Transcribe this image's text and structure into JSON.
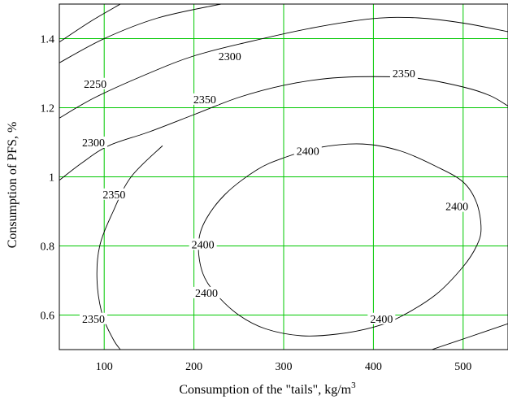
{
  "chart_data": {
    "type": "contour",
    "title": "",
    "xlabel": "Consumption of the \"tails\", kg/m",
    "xlabel_superscript": "3",
    "ylabel": "Consumption of PFS, %",
    "xlim": [
      50,
      550
    ],
    "ylim": [
      0.5,
      1.5
    ],
    "x_ticks": [
      "100",
      "200",
      "300",
      "400",
      "500"
    ],
    "y_ticks": [
      "0.6",
      "0.8",
      "1",
      "1.2",
      "1.4"
    ],
    "x_tick_values": [
      100,
      200,
      300,
      400,
      500
    ],
    "y_tick_values": [
      0.6,
      0.8,
      1.0,
      1.2,
      1.4
    ],
    "grid": true,
    "grid_color": "#00c800",
    "line_color": "#000000",
    "contours": [
      {
        "level": 2250,
        "segments": [
          {
            "points": [
              [
                50,
                1.39
              ],
              [
                85,
                1.45
              ],
              [
                118,
                1.5
              ]
            ]
          },
          {
            "points": [
              [
                50,
                1.33
              ],
              [
                100,
                1.4
              ],
              [
                160,
                1.46
              ],
              [
                230,
                1.5
              ]
            ]
          }
        ]
      },
      {
        "level": 2300,
        "segments": [
          {
            "points": [
              [
                50,
                1.17
              ],
              [
                90,
                1.23
              ],
              [
                150,
                1.3
              ],
              [
                200,
                1.35
              ],
              [
                260,
                1.39
              ],
              [
                330,
                1.43
              ],
              [
                400,
                1.458
              ],
              [
                450,
                1.46
              ],
              [
                500,
                1.445
              ],
              [
                550,
                1.42
              ]
            ]
          },
          {
            "points": [
              [
                465,
                0.5
              ],
              [
                505,
                0.535
              ],
              [
                550,
                0.575
              ]
            ]
          }
        ]
      },
      {
        "level": 2350,
        "segments": [
          {
            "points": [
              [
                50,
                0.99
              ],
              [
                75,
                1.04
              ],
              [
                105,
                1.09
              ],
              [
                150,
                1.13
              ],
              [
                200,
                1.18
              ],
              [
                250,
                1.23
              ],
              [
                300,
                1.265
              ],
              [
                350,
                1.285
              ],
              [
                400,
                1.29
              ],
              [
                450,
                1.285
              ],
              [
                500,
                1.26
              ],
              [
                530,
                1.235
              ],
              [
                550,
                1.205
              ]
            ]
          },
          {
            "points": [
              [
                165,
                1.09
              ],
              [
                130,
                1.0
              ],
              [
                110,
                0.9
              ],
              [
                95,
                0.8
              ],
              [
                92,
                0.7
              ],
              [
                98,
                0.6
              ],
              [
                110,
                0.53
              ],
              [
                118,
                0.5
              ]
            ]
          }
        ]
      },
      {
        "level": 2400,
        "segments": [
          {
            "points": [
              [
                388,
                1.095
              ],
              [
                430,
                1.075
              ],
              [
                470,
                1.03
              ],
              [
                500,
                0.985
              ],
              [
                515,
                0.925
              ],
              [
                520,
                0.85
              ],
              [
                515,
                0.8
              ],
              [
                500,
                0.74
              ],
              [
                470,
                0.66
              ],
              [
                430,
                0.595
              ],
              [
                400,
                0.565
              ],
              [
                360,
                0.545
              ],
              [
                320,
                0.54
              ],
              [
                280,
                0.56
              ],
              [
                250,
                0.6
              ],
              [
                225,
                0.66
              ],
              [
                210,
                0.72
              ],
              [
                205,
                0.8
              ],
              [
                212,
                0.87
              ],
              [
                235,
                0.95
              ],
              [
                270,
                1.02
              ],
              [
                300,
                1.055
              ],
              [
                340,
                1.085
              ],
              [
                388,
                1.095
              ]
            ],
            "closed": true
          }
        ]
      }
    ],
    "labels": [
      {
        "text": "2250",
        "x": 90,
        "y": 1.27
      },
      {
        "text": "2300",
        "x": 240,
        "y": 1.35
      },
      {
        "text": "2300",
        "x": 88,
        "y": 1.1
      },
      {
        "text": "2350",
        "x": 434,
        "y": 1.3
      },
      {
        "text": "2350",
        "x": 212,
        "y": 1.225
      },
      {
        "text": "2350",
        "x": 111,
        "y": 0.95
      },
      {
        "text": "2350",
        "x": 88,
        "y": 0.59
      },
      {
        "text": "2400",
        "x": 327,
        "y": 1.075
      },
      {
        "text": "2400",
        "x": 493,
        "y": 0.915
      },
      {
        "text": "2400",
        "x": 210,
        "y": 0.805
      },
      {
        "text": "2400",
        "x": 214,
        "y": 0.665
      },
      {
        "text": "2400",
        "x": 409,
        "y": 0.59
      }
    ]
  }
}
